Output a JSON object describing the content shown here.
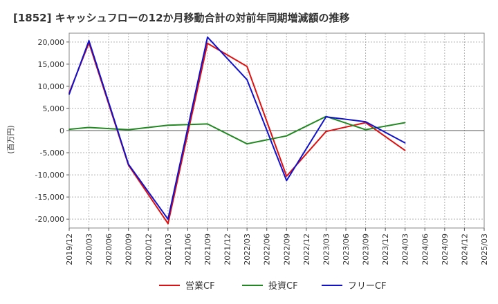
{
  "chart_data": {
    "type": "line",
    "title": "[1852]  キャッシュフローの12か月移動合計の対前年同期増減額の推移",
    "ylabel": "(百万円)",
    "xlabel": "",
    "ylim": [
      -22000,
      22000
    ],
    "yticks": [
      20000,
      15000,
      10000,
      5000,
      0,
      -5000,
      -10000,
      -15000,
      -20000
    ],
    "ytick_labels": [
      "20,000",
      "15,000",
      "10,000",
      "5,000",
      "0",
      "-5,000",
      "-10,000",
      "-15,000",
      "-20,000"
    ],
    "categories": [
      "2019/12",
      "2020/03",
      "2020/06",
      "2020/09",
      "2020/12",
      "2021/03",
      "2021/06",
      "2021/09",
      "2021/12",
      "2022/03",
      "2022/06",
      "2022/09",
      "2022/12",
      "2023/03",
      "2023/06",
      "2023/09",
      "2023/12",
      "2024/03",
      "2024/06",
      "2024/09",
      "2024/12",
      "2025/03"
    ],
    "grid": true,
    "legend_position": "bottom-center",
    "series": [
      {
        "name": "営業CF",
        "color": "#dd1111",
        "values": [
          8500,
          19800,
          null,
          -7800,
          null,
          -21000,
          null,
          19700,
          null,
          14500,
          null,
          -10300,
          null,
          -200,
          null,
          1800,
          null,
          -4500,
          null,
          null,
          null,
          null
        ]
      },
      {
        "name": "投資CF",
        "color": "#228822",
        "values": [
          300,
          700,
          null,
          200,
          null,
          1200,
          null,
          1500,
          null,
          -3000,
          null,
          -1200,
          null,
          3200,
          null,
          200,
          null,
          1800,
          null,
          null,
          null,
          null
        ]
      },
      {
        "name": "フリーCF",
        "color": "#1111cc",
        "values": [
          8200,
          20300,
          null,
          -7600,
          null,
          -20000,
          null,
          21100,
          null,
          11500,
          null,
          -11300,
          null,
          3100,
          null,
          2000,
          null,
          -2800,
          null,
          null,
          null,
          null
        ]
      }
    ]
  }
}
